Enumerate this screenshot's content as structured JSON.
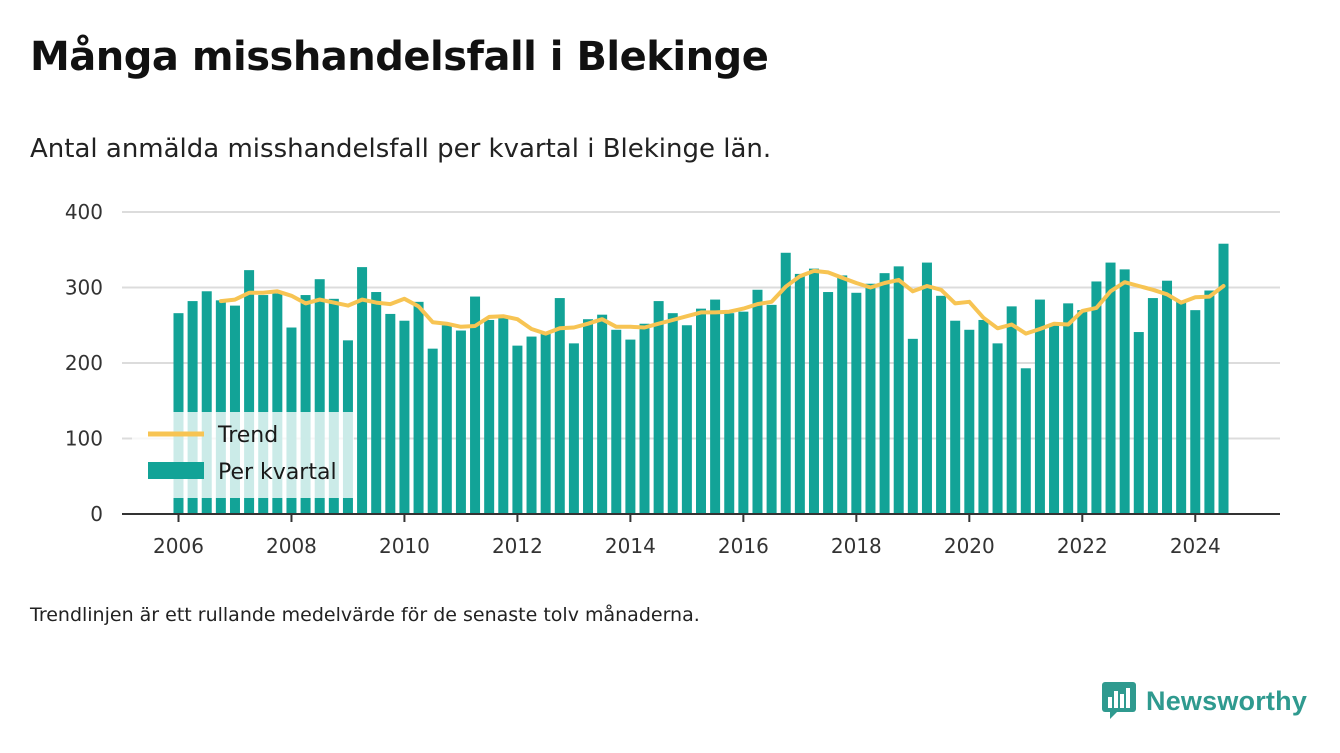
{
  "title": "Många misshandelsfall i Blekinge",
  "subtitle": "Antal anmälda misshandelsfall per kvartal i Blekinge län.",
  "note": "Trendlinjen är ett rullande medelvärde för de senaste tolv månaderna.",
  "brand": {
    "name": "Newsworthy",
    "icon": "newsworthy-logo-icon"
  },
  "colors": {
    "bar": "#12a397",
    "trend": "#f7c453",
    "grid": "#dcdcdc",
    "axis": "#333333",
    "brand": "#2f9a8f"
  },
  "chart_data": {
    "type": "bar",
    "grid": true,
    "legend_position": "bottom-left",
    "ylim": [
      0,
      400
    ],
    "yticks": [
      0,
      100,
      200,
      300,
      400
    ],
    "xlim": [
      2005,
      2025.5
    ],
    "xticks": [
      2006,
      2008,
      2010,
      2012,
      2014,
      2016,
      2018,
      2020,
      2022,
      2024
    ],
    "x_start": 2006,
    "x_step": 0.25,
    "series": [
      {
        "name": "Per kvartal",
        "type": "bar",
        "values": [
          266,
          282,
          295,
          283,
          276,
          323,
          290,
          292,
          247,
          290,
          311,
          285,
          230,
          327,
          294,
          265,
          256,
          281,
          219,
          250,
          243,
          288,
          257,
          262,
          223,
          235,
          239,
          286,
          226,
          258,
          264,
          244,
          231,
          252,
          282,
          266,
          250,
          272,
          284,
          266,
          268,
          297,
          277,
          346,
          318,
          325,
          294,
          316,
          293,
          305,
          319,
          328,
          232,
          333,
          289,
          256,
          244,
          257,
          226,
          275,
          193,
          284,
          250,
          279,
          270,
          308,
          333,
          324,
          241,
          286,
          309,
          282,
          270,
          296,
          358
        ]
      },
      {
        "name": "Trend",
        "type": "line",
        "start_index": 3,
        "values": [
          282,
          284,
          293,
          293,
          295,
          289,
          279,
          284,
          280,
          276,
          284,
          280,
          278,
          285,
          275,
          254,
          252,
          248,
          249,
          261,
          262,
          258,
          245,
          239,
          246,
          247,
          252,
          258,
          248,
          248,
          247,
          252,
          257,
          262,
          267,
          267,
          268,
          272,
          278,
          281,
          301,
          315,
          322,
          320,
          313,
          306,
          300,
          306,
          310,
          295,
          302,
          297,
          279,
          281,
          260,
          246,
          251,
          239,
          245,
          252,
          251,
          269,
          273,
          295,
          307,
          302,
          297,
          291,
          280,
          287,
          288,
          302
        ]
      }
    ]
  }
}
